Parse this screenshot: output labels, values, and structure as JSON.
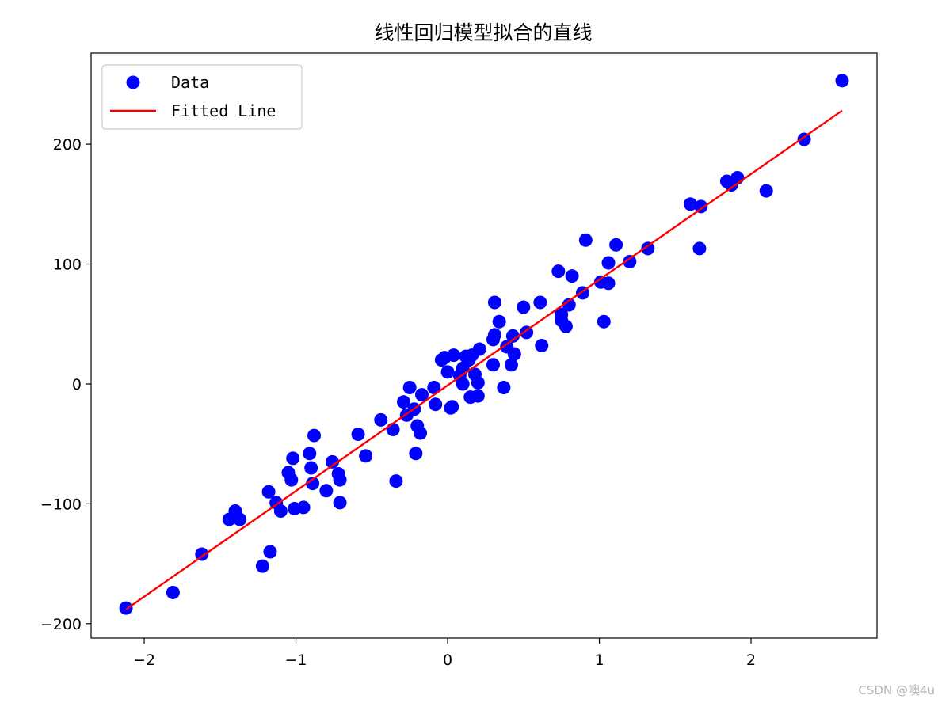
{
  "chart_data": {
    "type": "scatter",
    "title": "线性回归模型拟合的直线",
    "xlabel": "",
    "ylabel": "",
    "xlim": [
      -2.35,
      2.83
    ],
    "ylim": [
      -212,
      276
    ],
    "xticks": [
      -2,
      -1,
      0,
      1,
      2
    ],
    "yticks": [
      -200,
      -100,
      0,
      100,
      200
    ],
    "xtick_labels": [
      "−2",
      "−1",
      "0",
      "1",
      "2"
    ],
    "ytick_labels": [
      "−200",
      "−100",
      "0",
      "100",
      "200"
    ],
    "grid": false,
    "legend_position": "top-left",
    "series": [
      {
        "name": "Data",
        "kind": "scatter",
        "color": "#0000ff",
        "points": [
          [
            -2.12,
            -187
          ],
          [
            -1.81,
            -174
          ],
          [
            -1.62,
            -142
          ],
          [
            -1.44,
            -113
          ],
          [
            -1.4,
            -106
          ],
          [
            -1.37,
            -113
          ],
          [
            -1.22,
            -152
          ],
          [
            -1.17,
            -140
          ],
          [
            -1.18,
            -90
          ],
          [
            -1.13,
            -99
          ],
          [
            -1.1,
            -106
          ],
          [
            -1.05,
            -74
          ],
          [
            -1.03,
            -80
          ],
          [
            -1.02,
            -62
          ],
          [
            -1.01,
            -104
          ],
          [
            -0.95,
            -103
          ],
          [
            -0.91,
            -58
          ],
          [
            -0.9,
            -70
          ],
          [
            -0.89,
            -83
          ],
          [
            -0.88,
            -43
          ],
          [
            -0.8,
            -89
          ],
          [
            -0.76,
            -65
          ],
          [
            -0.72,
            -75
          ],
          [
            -0.71,
            -80
          ],
          [
            -0.71,
            -99
          ],
          [
            -0.59,
            -42
          ],
          [
            -0.54,
            -60
          ],
          [
            -0.44,
            -30
          ],
          [
            -0.36,
            -38
          ],
          [
            -0.34,
            -81
          ],
          [
            -0.29,
            -15
          ],
          [
            -0.27,
            -26
          ],
          [
            -0.25,
            -3
          ],
          [
            -0.22,
            -21
          ],
          [
            -0.21,
            -58
          ],
          [
            -0.2,
            -35
          ],
          [
            -0.18,
            -41
          ],
          [
            -0.17,
            -9
          ],
          [
            -0.09,
            -3
          ],
          [
            -0.08,
            -17
          ],
          [
            -0.04,
            20
          ],
          [
            -0.02,
            22
          ],
          [
            0.0,
            10
          ],
          [
            0.02,
            -20
          ],
          [
            0.03,
            -19
          ],
          [
            0.04,
            24
          ],
          [
            0.08,
            7
          ],
          [
            0.1,
            13
          ],
          [
            0.1,
            0
          ],
          [
            0.12,
            23
          ],
          [
            0.14,
            20
          ],
          [
            0.15,
            -11
          ],
          [
            0.16,
            24
          ],
          [
            0.18,
            8
          ],
          [
            0.2,
            -10
          ],
          [
            0.2,
            1
          ],
          [
            0.21,
            29
          ],
          [
            0.3,
            16
          ],
          [
            0.3,
            37
          ],
          [
            0.31,
            41
          ],
          [
            0.31,
            68
          ],
          [
            0.34,
            52
          ],
          [
            0.37,
            -3
          ],
          [
            0.39,
            31
          ],
          [
            0.42,
            16
          ],
          [
            0.43,
            40
          ],
          [
            0.44,
            25
          ],
          [
            0.5,
            64
          ],
          [
            0.52,
            43
          ],
          [
            0.61,
            68
          ],
          [
            0.62,
            32
          ],
          [
            0.73,
            94
          ],
          [
            0.75,
            53
          ],
          [
            0.75,
            58
          ],
          [
            0.78,
            48
          ],
          [
            0.8,
            66
          ],
          [
            0.82,
            90
          ],
          [
            0.89,
            76
          ],
          [
            0.91,
            120
          ],
          [
            1.01,
            85
          ],
          [
            1.03,
            52
          ],
          [
            1.06,
            101
          ],
          [
            1.06,
            84
          ],
          [
            1.11,
            116
          ],
          [
            1.2,
            102
          ],
          [
            1.32,
            113
          ],
          [
            1.6,
            150
          ],
          [
            1.66,
            113
          ],
          [
            1.67,
            148
          ],
          [
            1.84,
            169
          ],
          [
            1.87,
            166
          ],
          [
            1.91,
            172
          ],
          [
            2.1,
            161
          ],
          [
            2.35,
            204
          ],
          [
            2.6,
            253
          ]
        ]
      },
      {
        "name": "Fitted Line",
        "kind": "line",
        "color": "#ff0000",
        "points": [
          [
            -2.12,
            -188
          ],
          [
            2.6,
            228
          ]
        ]
      }
    ]
  },
  "watermark": "CSDN @噢4u"
}
